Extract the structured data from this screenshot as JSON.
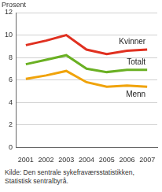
{
  "chart_data": {
    "type": "line",
    "y_label": "Prosent",
    "source": "Kilde: Den sentrale sykefraværsstatistikken, Statistisk sentralbyrå.",
    "categories": [
      "2001",
      "2002",
      "2003",
      "2004",
      "2005",
      "2006",
      "2007"
    ],
    "series": [
      {
        "name": "Kvinner",
        "color": "#e03020",
        "values": [
          9.1,
          9.5,
          10.0,
          8.7,
          8.3,
          8.6,
          8.7
        ]
      },
      {
        "name": "Totalt",
        "color": "#6ab023",
        "values": [
          7.4,
          7.8,
          8.2,
          7.0,
          6.7,
          6.9,
          6.9
        ]
      },
      {
        "name": "Menn",
        "color": "#f0a30a",
        "values": [
          6.1,
          6.4,
          6.8,
          5.8,
          5.4,
          5.5,
          5.4
        ]
      }
    ],
    "ylim": [
      0,
      12
    ],
    "yticks": [
      0,
      2,
      4,
      6,
      8,
      10,
      12
    ],
    "grid": true
  }
}
